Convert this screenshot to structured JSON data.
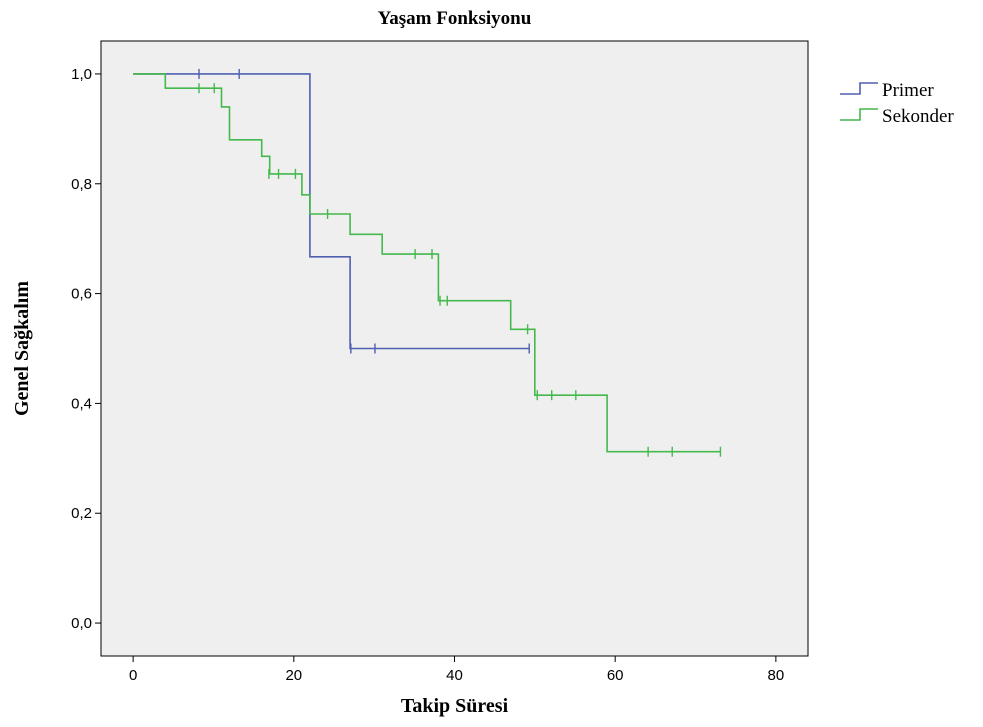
{
  "chart_data": {
    "type": "line",
    "title": "Yaşam Fonksiyonu",
    "xlabel": "Takip Süresi",
    "ylabel": "Genel Sağkalım",
    "xlim": [
      -4,
      84
    ],
    "ylim": [
      -0.06,
      1.06
    ],
    "xticks": [
      0,
      20,
      40,
      60,
      80
    ],
    "xtick_labels": [
      "0",
      "20",
      "40",
      "60",
      "80"
    ],
    "yticks": [
      0,
      0.2,
      0.4,
      0.6,
      0.8,
      1.0
    ],
    "ytick_labels": [
      "0,0",
      "0,2",
      "0,4",
      "0,6",
      "0,8",
      "1,0"
    ],
    "grid": false,
    "legend_position": "right",
    "plot_background": "#efefef",
    "series": [
      {
        "name": "Primer",
        "color": "#5060b0",
        "step": [
          [
            0,
            1.0
          ],
          [
            22,
            1.0
          ],
          [
            22,
            0.667
          ],
          [
            27,
            0.667
          ],
          [
            27,
            0.5
          ],
          [
            49.3,
            0.5
          ]
        ],
        "censored": [
          [
            8.2,
            1.0
          ],
          [
            13.2,
            1.0
          ],
          [
            27.1,
            0.5
          ],
          [
            30.1,
            0.5
          ],
          [
            49.3,
            0.5
          ]
        ]
      },
      {
        "name": "Sekonder",
        "color": "#44b94c",
        "step": [
          [
            0,
            1.0
          ],
          [
            4,
            1.0
          ],
          [
            4,
            0.974
          ],
          [
            11,
            0.974
          ],
          [
            11,
            0.94
          ],
          [
            12,
            0.94
          ],
          [
            12,
            0.88
          ],
          [
            16,
            0.88
          ],
          [
            16,
            0.85
          ],
          [
            17,
            0.85
          ],
          [
            17,
            0.818
          ],
          [
            21,
            0.818
          ],
          [
            21,
            0.78
          ],
          [
            22,
            0.78
          ],
          [
            22,
            0.745
          ],
          [
            27,
            0.745
          ],
          [
            27,
            0.708
          ],
          [
            31,
            0.708
          ],
          [
            31,
            0.672
          ],
          [
            38,
            0.672
          ],
          [
            38,
            0.587
          ],
          [
            47,
            0.587
          ],
          [
            47,
            0.535
          ],
          [
            50,
            0.535
          ],
          [
            50,
            0.415
          ],
          [
            59,
            0.415
          ],
          [
            59,
            0.312
          ],
          [
            73.1,
            0.312
          ]
        ],
        "censored": [
          [
            8.2,
            0.974
          ],
          [
            10.1,
            0.974
          ],
          [
            16.9,
            0.818
          ],
          [
            18.1,
            0.818
          ],
          [
            20.2,
            0.818
          ],
          [
            24.2,
            0.745
          ],
          [
            35.1,
            0.672
          ],
          [
            37.2,
            0.672
          ],
          [
            38.2,
            0.587
          ],
          [
            39.1,
            0.587
          ],
          [
            49.1,
            0.535
          ],
          [
            50.3,
            0.415
          ],
          [
            52.1,
            0.415
          ],
          [
            55.1,
            0.415
          ],
          [
            64.1,
            0.312
          ],
          [
            67.1,
            0.312
          ],
          [
            73.1,
            0.312
          ]
        ]
      }
    ]
  }
}
